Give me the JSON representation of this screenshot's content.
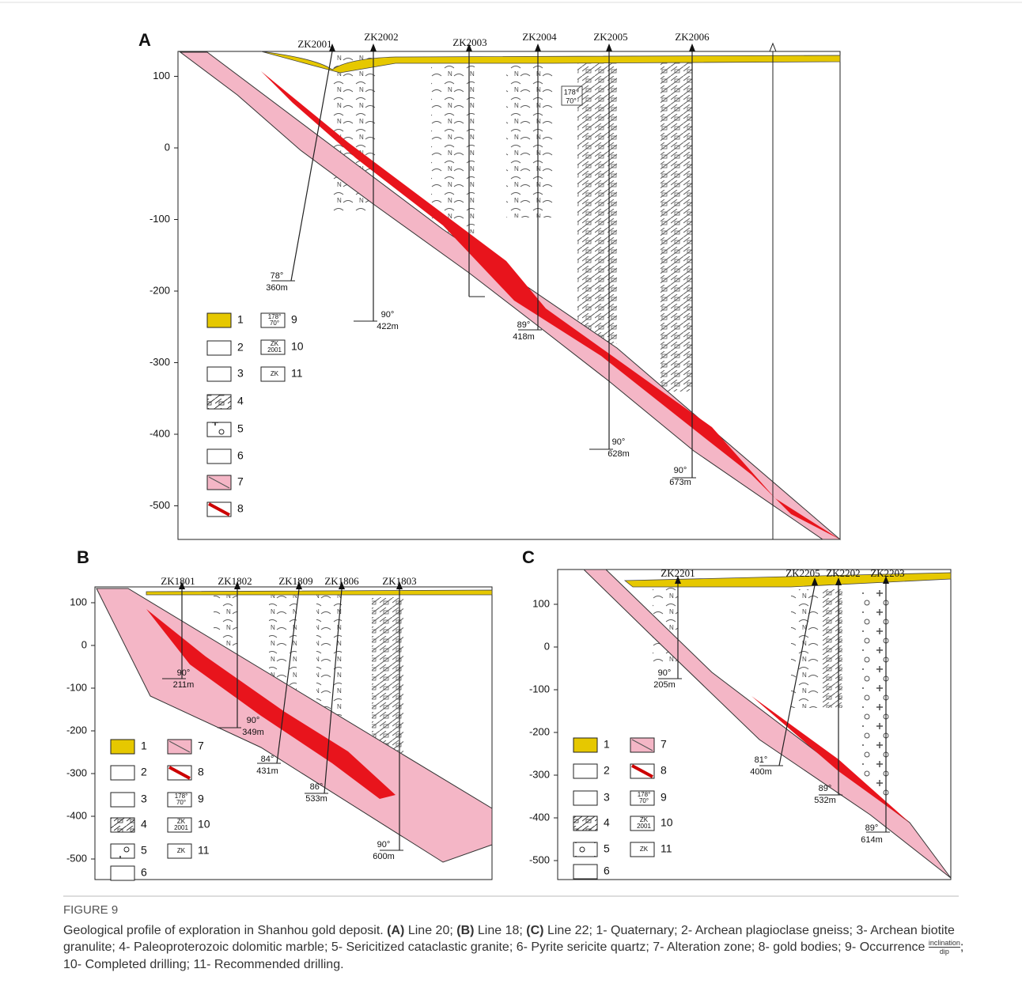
{
  "panels": [
    {
      "label": "A",
      "yticks": [
        100,
        0,
        -100,
        -200,
        -300,
        -400,
        -500
      ],
      "holes": [
        {
          "name": "ZK2001",
          "angle": "78°",
          "depth": "360m"
        },
        {
          "name": "ZK2002",
          "angle": "90°",
          "depth": "422m"
        },
        {
          "name": "ZK2003"
        },
        {
          "name": "ZK2004",
          "angle": "89°",
          "depth": "418m"
        },
        {
          "name": "ZK2005",
          "angle": "90°",
          "depth": "628m"
        },
        {
          "name": "ZK2006",
          "angle": "90°",
          "depth": "673m"
        }
      ],
      "occurrence": [
        "178°",
        "70°"
      ],
      "legend": [
        {
          "number": "1"
        },
        {
          "number": "2"
        },
        {
          "number": "3"
        },
        {
          "number": "4"
        },
        {
          "number": "5"
        },
        {
          "number": "6"
        },
        {
          "number": "7"
        },
        {
          "number": "8"
        },
        {
          "number": "9",
          "symbol": [
            "178°",
            "70°"
          ]
        },
        {
          "number": "10",
          "symbol": [
            "ZK",
            "2001"
          ]
        },
        {
          "number": "11",
          "symbol": [
            "ZK"
          ]
        }
      ]
    },
    {
      "label": "B",
      "yticks": [
        100,
        0,
        -100,
        -200,
        -300,
        -400,
        -500
      ],
      "holes": [
        {
          "name": "ZK1801",
          "angle": "90°",
          "depth": "211m"
        },
        {
          "name": "ZK1802",
          "angle": "90°",
          "depth": "349m"
        },
        {
          "name": "ZK1809",
          "angle": "84°",
          "depth": "431m"
        },
        {
          "name": "ZK1806",
          "angle": "86°",
          "depth": "533m"
        },
        {
          "name": "ZK1803",
          "angle": "90°",
          "depth": "600m"
        }
      ],
      "legend": [
        {
          "number": "1"
        },
        {
          "number": "2"
        },
        {
          "number": "3"
        },
        {
          "number": "4"
        },
        {
          "number": "5"
        },
        {
          "number": "6"
        },
        {
          "number": "7"
        },
        {
          "number": "8"
        },
        {
          "number": "9",
          "symbol": [
            "178°",
            "70°"
          ]
        },
        {
          "number": "10",
          "symbol": [
            "ZK",
            "2001"
          ]
        },
        {
          "number": "11",
          "symbol": [
            "ZK"
          ]
        }
      ]
    },
    {
      "label": "C",
      "yticks": [
        100,
        0,
        -100,
        -200,
        -300,
        -400,
        -500
      ],
      "holes": [
        {
          "name": "ZK2201",
          "angle": "90°",
          "depth": "205m"
        },
        {
          "name": "ZK2205",
          "angle": "81°",
          "depth": "400m"
        },
        {
          "name": "ZK2202",
          "angle": "89°",
          "depth": "532m"
        },
        {
          "name": "ZK2203",
          "angle": "89°",
          "depth": "614m"
        }
      ],
      "legend": [
        {
          "number": "1"
        },
        {
          "number": "2"
        },
        {
          "number": "3"
        },
        {
          "number": "4"
        },
        {
          "number": "5"
        },
        {
          "number": "6"
        },
        {
          "number": "7"
        },
        {
          "number": "8"
        },
        {
          "number": "9",
          "symbol": [
            "178°",
            "70°"
          ]
        },
        {
          "number": "10",
          "symbol": [
            "ZK",
            "2001"
          ]
        },
        {
          "number": "11",
          "symbol": [
            "ZK"
          ]
        }
      ]
    }
  ],
  "caption": {
    "label": "FIGURE 9",
    "text_1": "Geological profile of exploration in Shanhou gold deposit.",
    "panel_a": "(A)",
    "text_2": "Line 20;",
    "panel_b": "(B)",
    "text_3": "Line 18;",
    "panel_c": "(C)",
    "text_4": "Line 22; 1- Quaternary; 2- Archean plagioclase gneiss; 3- Archean biotite granulite; 4- Paleoproterozoic dolomitic marble; 5- Sericitized cataclastic granite; 6- Pyrite sericite quartz; 7- Alteration zone; 8- gold bodies; 9- Occurrence",
    "fraction_top": "inclination",
    "fraction_bottom": "dip",
    "text_5": "; 10- Completed drilling; 11- Recommended drilling."
  }
}
